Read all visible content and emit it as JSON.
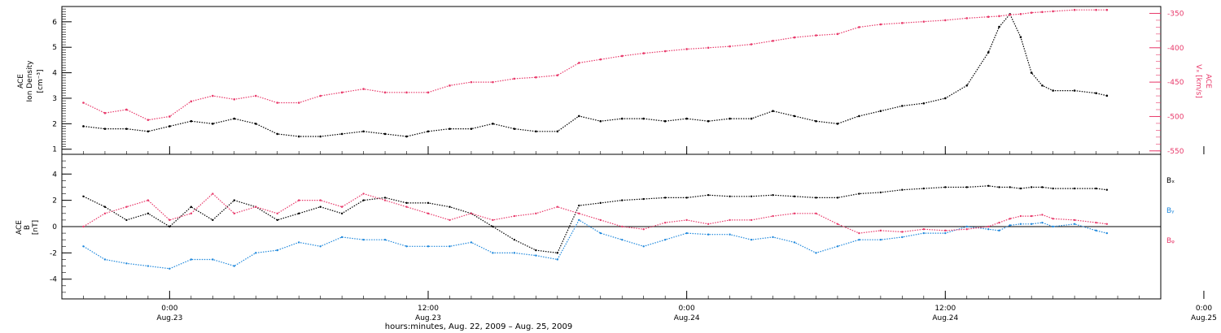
{
  "chart_data": [
    {
      "type": "scatter",
      "left_axis": {
        "label_lines": [
          "ACE",
          "Ion Density"
        ],
        "unit": "[cm⁻³]",
        "range": [
          0.8,
          6.6
        ],
        "ticks": [
          1,
          2,
          3,
          4,
          5,
          6
        ],
        "tick_labels": [
          "1",
          "2",
          "3",
          "4",
          "5",
          "6"
        ]
      },
      "right_axis": {
        "label_lines": [
          "ACE",
          "Vₓ [km/s]"
        ],
        "range": [
          -555,
          -340
        ],
        "ticks": [
          -350,
          -400,
          -450,
          -500,
          -550
        ],
        "tick_labels": [
          "-350",
          "-400",
          "-450",
          "-500",
          "-550"
        ]
      },
      "x_hours": [
        -4.0,
        -3.0,
        -2.0,
        -1.0,
        0.0,
        1.0,
        2.0,
        3.0,
        4.0,
        5.0,
        6.0,
        7.0,
        8.0,
        9.0,
        10.0,
        11.0,
        12.0,
        13.0,
        14.0,
        15.0,
        16.0,
        17.0,
        18.0,
        19.0,
        20.0,
        21.0,
        22.0,
        23.0,
        24.0,
        25.0,
        26.0,
        27.0,
        28.0,
        29.0,
        30.0,
        31.0,
        32.0,
        33.0,
        34.0,
        35.0,
        36.0,
        37.0,
        38.0,
        38.5,
        39.0,
        39.5,
        40.0,
        40.5,
        41.0,
        42.0,
        43.0,
        43.5
      ],
      "series": [
        {
          "name": "ACE Ion Density",
          "color": "#000000",
          "axis": "left",
          "values": [
            1.9,
            1.8,
            1.8,
            1.7,
            1.9,
            2.1,
            2.0,
            2.2,
            2.0,
            1.6,
            1.5,
            1.5,
            1.6,
            1.7,
            1.6,
            1.5,
            1.7,
            1.8,
            1.8,
            2.0,
            1.8,
            1.7,
            1.7,
            2.3,
            2.1,
            2.2,
            2.2,
            2.1,
            2.2,
            2.1,
            2.2,
            2.2,
            2.5,
            2.3,
            2.1,
            2.0,
            2.3,
            2.5,
            2.7,
            2.8,
            3.0,
            3.5,
            4.8,
            5.8,
            6.3,
            5.4,
            4.0,
            3.5,
            3.3,
            3.3,
            3.2,
            3.1
          ]
        },
        {
          "name": "ACE Vx",
          "color": "#e8396a",
          "axis": "right",
          "values": [
            -480,
            -495,
            -490,
            -505,
            -500,
            -478,
            -470,
            -475,
            -470,
            -480,
            -480,
            -470,
            -465,
            -460,
            -465,
            -465,
            -465,
            -455,
            -450,
            -450,
            -445,
            -443,
            -440,
            -422,
            -417,
            -412,
            -408,
            -405,
            -402,
            -400,
            -398,
            -395,
            -390,
            -385,
            -382,
            -380,
            -370,
            -366,
            -364,
            -362,
            -360,
            -357,
            -355,
            -354,
            -352,
            -351,
            -349,
            -348,
            -347,
            -345,
            -345,
            -345
          ]
        }
      ]
    },
    {
      "type": "line",
      "y_axis": {
        "label_lines": [
          "ACE",
          "B",
          "[nT]"
        ],
        "range": [
          -5.5,
          5.5
        ],
        "ticks": [
          -4,
          -2,
          0,
          2,
          4
        ],
        "tick_labels": [
          "-4",
          "-2",
          "0",
          "2",
          "4"
        ]
      },
      "x_hours": [
        -4.0,
        -3.0,
        -2.0,
        -1.0,
        0.0,
        1.0,
        2.0,
        3.0,
        4.0,
        5.0,
        6.0,
        7.0,
        8.0,
        9.0,
        10.0,
        11.0,
        12.0,
        13.0,
        14.0,
        15.0,
        16.0,
        17.0,
        18.0,
        19.0,
        20.0,
        21.0,
        22.0,
        23.0,
        24.0,
        25.0,
        26.0,
        27.0,
        28.0,
        29.0,
        30.0,
        31.0,
        32.0,
        33.0,
        34.0,
        35.0,
        36.0,
        37.0,
        38.0,
        38.5,
        39.0,
        39.5,
        40.0,
        40.5,
        41.0,
        42.0,
        43.0,
        43.5
      ],
      "series": [
        {
          "name": "Bₓ",
          "color": "#000000",
          "values": [
            2.3,
            1.5,
            0.5,
            1.0,
            0.0,
            1.5,
            0.5,
            2.0,
            1.5,
            0.5,
            1.0,
            1.5,
            1.0,
            2.0,
            2.2,
            1.8,
            1.8,
            1.5,
            1.0,
            0.0,
            -1.0,
            -1.8,
            -2.0,
            1.6,
            1.8,
            2.0,
            2.1,
            2.2,
            2.2,
            2.4,
            2.3,
            2.3,
            2.4,
            2.3,
            2.2,
            2.2,
            2.5,
            2.6,
            2.8,
            2.9,
            3.0,
            3.0,
            3.1,
            3.0,
            3.0,
            2.9,
            3.0,
            3.0,
            2.9,
            2.9,
            2.9,
            2.8
          ]
        },
        {
          "name": "Bᵧ",
          "color": "#1f88dc",
          "values": [
            -1.5,
            -2.5,
            -2.8,
            -3.0,
            -3.2,
            -2.5,
            -2.5,
            -3.0,
            -2.0,
            -1.8,
            -1.2,
            -1.5,
            -0.8,
            -1.0,
            -1.0,
            -1.5,
            -1.5,
            -1.5,
            -1.2,
            -2.0,
            -2.0,
            -2.2,
            -2.5,
            0.5,
            -0.5,
            -1.0,
            -1.5,
            -1.0,
            -0.5,
            -0.6,
            -0.6,
            -1.0,
            -0.8,
            -1.2,
            -2.0,
            -1.5,
            -1.0,
            -1.0,
            -0.8,
            -0.5,
            -0.5,
            0.0,
            -0.2,
            -0.3,
            0.1,
            0.2,
            0.2,
            0.3,
            0.0,
            0.2,
            -0.3,
            -0.5
          ]
        },
        {
          "name": "Bᵩ",
          "color": "#e8396a",
          "values": [
            0.0,
            1.0,
            1.5,
            2.0,
            0.5,
            1.0,
            2.5,
            1.0,
            1.5,
            1.0,
            2.0,
            2.0,
            1.5,
            2.5,
            2.0,
            1.5,
            1.0,
            0.5,
            1.0,
            0.5,
            0.8,
            1.0,
            1.5,
            1.0,
            0.5,
            0.0,
            -0.2,
            0.3,
            0.5,
            0.2,
            0.5,
            0.5,
            0.8,
            1.0,
            1.0,
            0.2,
            -0.5,
            -0.3,
            -0.4,
            -0.2,
            -0.3,
            -0.2,
            0.0,
            0.3,
            0.6,
            0.8,
            0.8,
            0.9,
            0.6,
            0.5,
            0.3,
            0.2
          ]
        }
      ],
      "zero_line": true
    }
  ],
  "x_axis": {
    "range_hours": [
      -5.0,
      46.0
    ],
    "ticks": [
      {
        "hour": 0,
        "time": "0:00",
        "date": "Aug.23"
      },
      {
        "hour": 12,
        "time": "12:00",
        "date": "Aug.23"
      },
      {
        "hour": 24,
        "time": "0:00",
        "date": "Aug.24"
      },
      {
        "hour": 36,
        "time": "12:00",
        "date": "Aug.24"
      },
      {
        "hour": 48,
        "time": "0:00",
        "date": "Aug.25"
      }
    ],
    "xlabel": "hours:minutes, Aug. 22, 2009 – Aug. 25, 2009"
  },
  "legend_labels": [
    "Bₓ",
    "Bᵧ",
    "Bᵩ"
  ]
}
